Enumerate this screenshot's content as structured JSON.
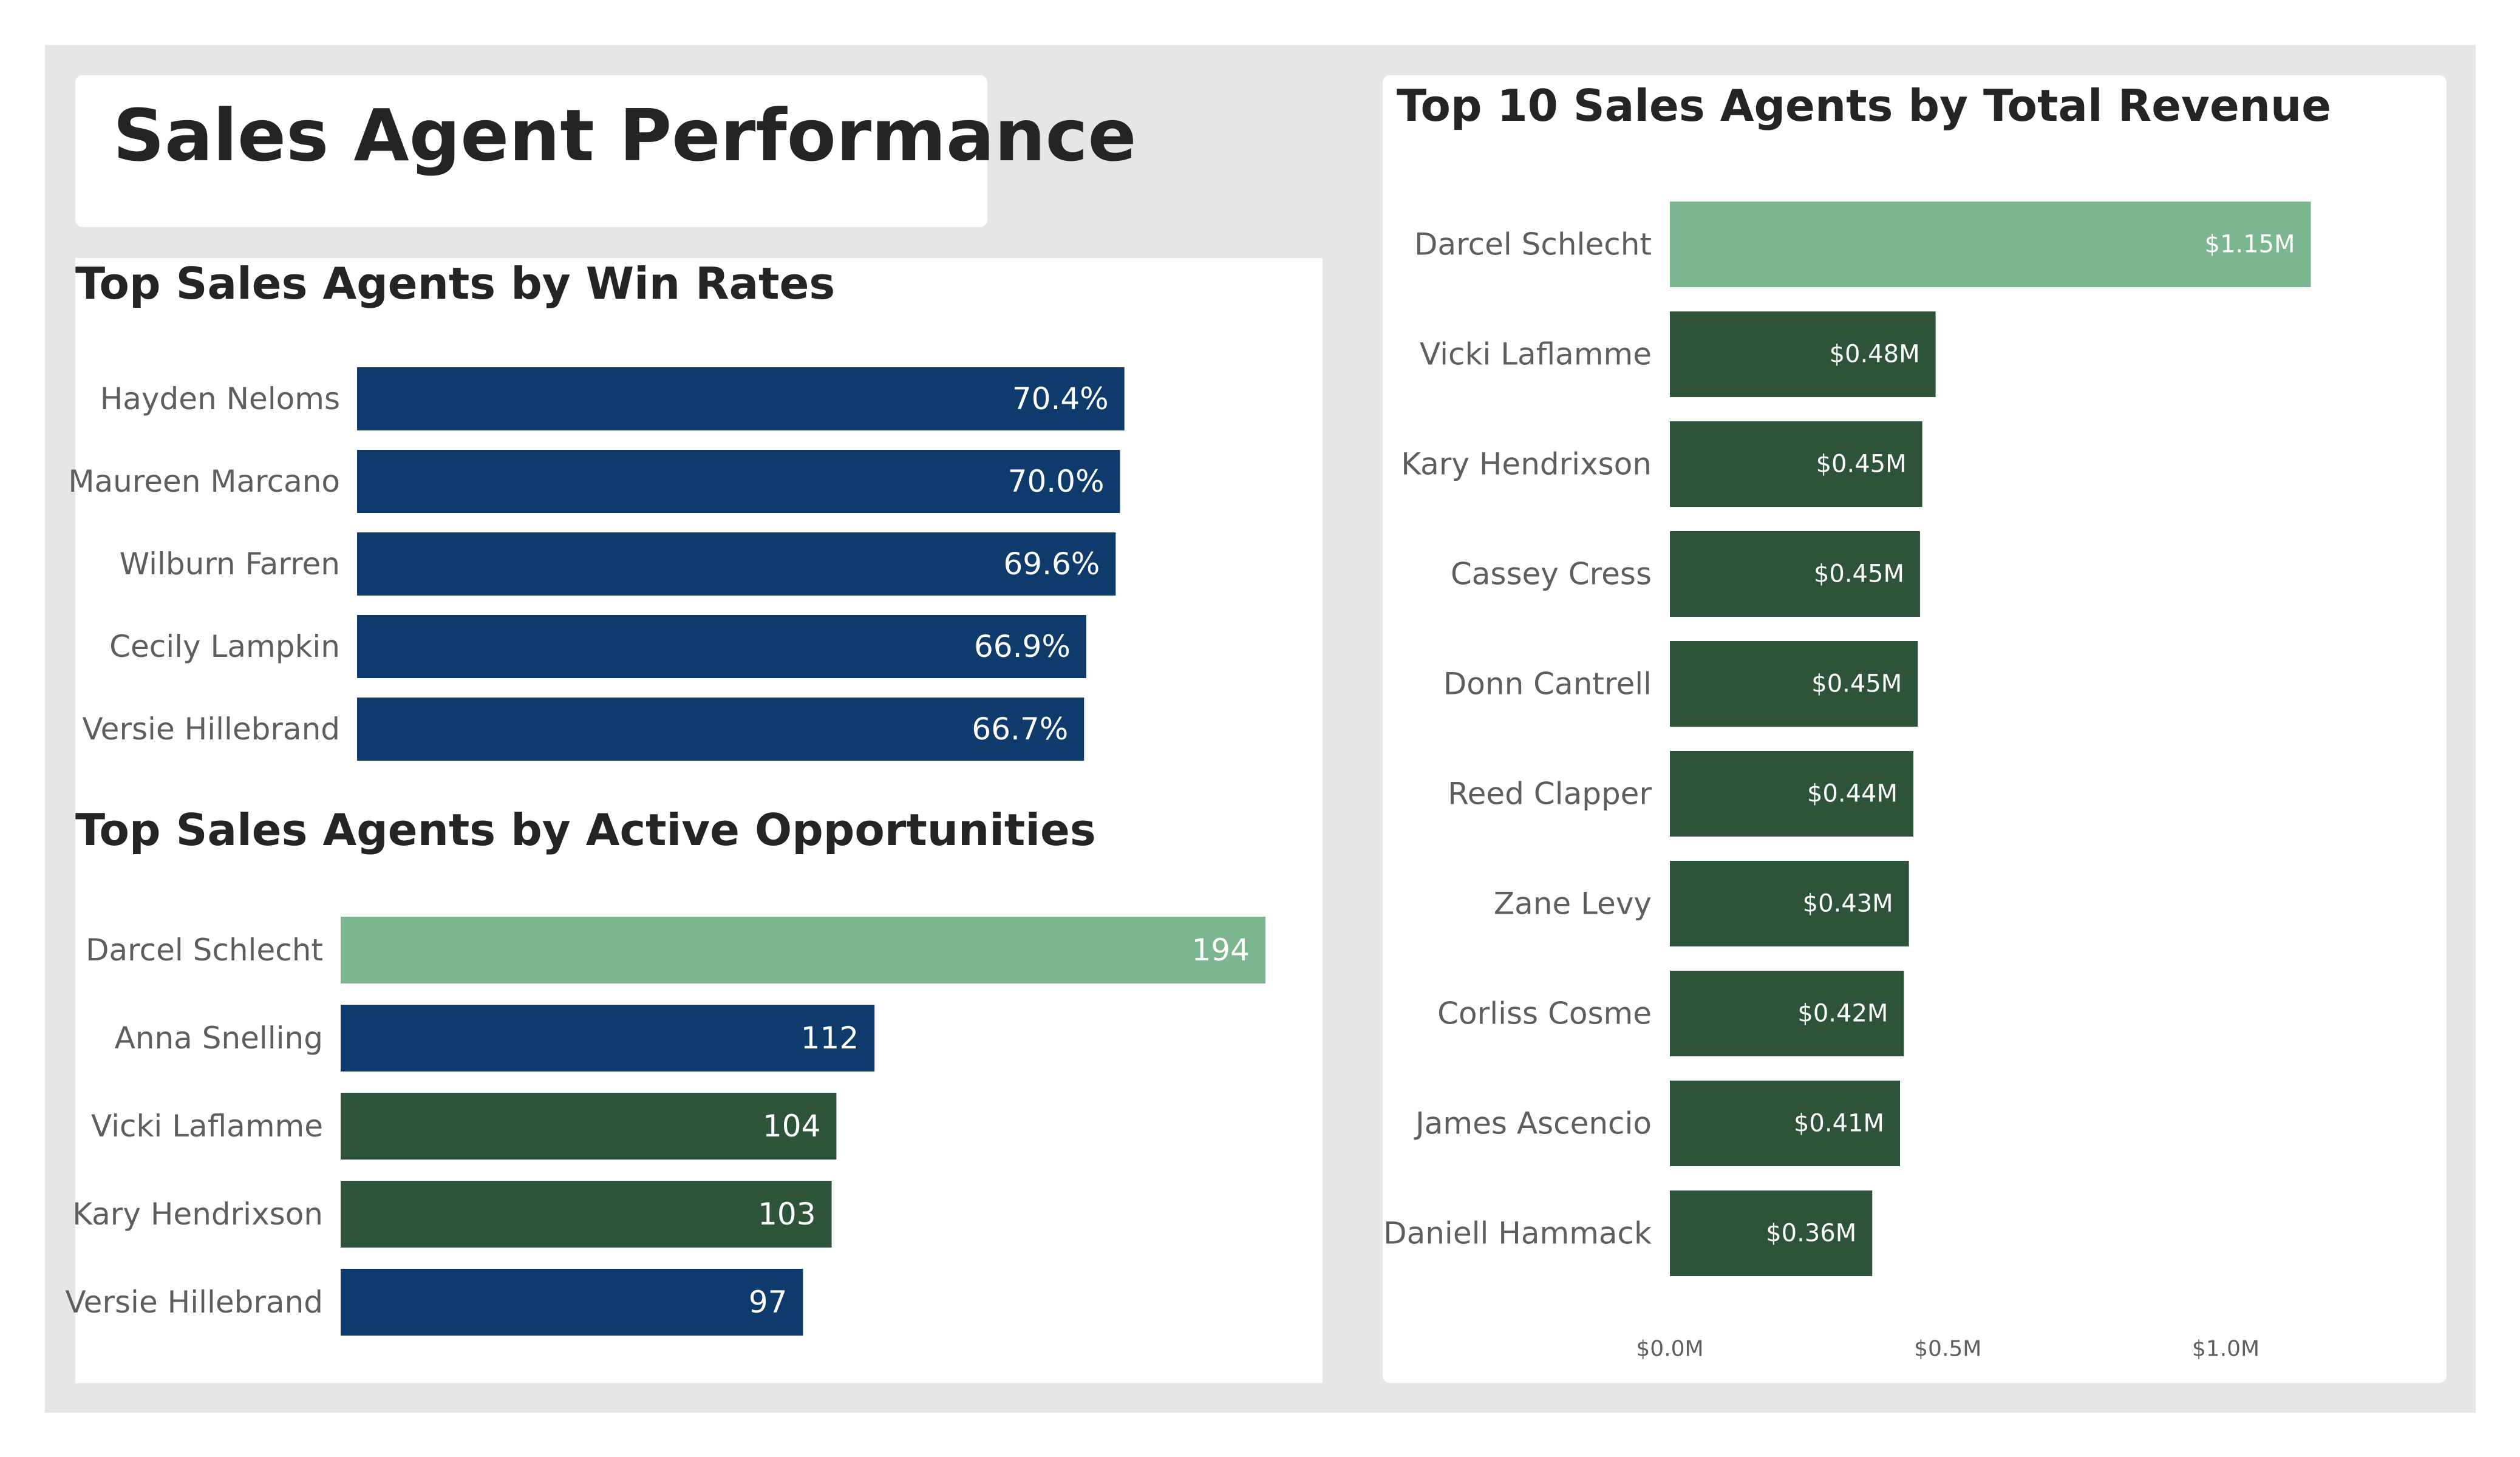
{
  "page": {
    "title": "Sales Agent Performance"
  },
  "colors": {
    "navy": "#0f3a6c",
    "dark_green": "#2d5339",
    "highlight_green": "#7bb68f"
  },
  "chart_data": [
    {
      "id": "win-rates",
      "type": "bar",
      "orientation": "horizontal",
      "title": "Top Sales Agents by Win Rates",
      "categories": [
        "Hayden Neloms",
        "Maureen Marcano",
        "Wilburn Farren",
        "Cecily Lampkin",
        "Versie Hillebrand"
      ],
      "values": [
        70.4,
        70.0,
        69.6,
        66.9,
        66.7
      ],
      "value_labels": [
        "70.4%",
        "70.0%",
        "69.6%",
        "66.9%",
        "66.7%"
      ],
      "bar_colors": [
        "#0f3a6c",
        "#0f3a6c",
        "#0f3a6c",
        "#0f3a6c",
        "#0f3a6c"
      ],
      "xlim": [
        0,
        80
      ]
    },
    {
      "id": "active-opps",
      "type": "bar",
      "orientation": "horizontal",
      "title": "Top Sales Agents by Active Opportunities",
      "categories": [
        "Darcel Schlecht",
        "Anna Snelling",
        "Vicki Laflamme",
        "Kary Hendrixson",
        "Versie Hillebrand"
      ],
      "values": [
        194,
        112,
        104,
        103,
        97
      ],
      "value_labels": [
        "194",
        "112",
        "104",
        "103",
        "97"
      ],
      "bar_colors": [
        "#7bb68f",
        "#0f3a6c",
        "#2d5339",
        "#2d5339",
        "#0f3a6c"
      ],
      "xlim": [
        0,
        194
      ]
    },
    {
      "id": "revenue",
      "type": "bar",
      "orientation": "horizontal",
      "title": "Top 10 Sales Agents by Total Revenue",
      "categories": [
        "Darcel Schlecht",
        "Vicki Laflamme",
        "Kary Hendrixson",
        "Cassey Cress",
        "Donn Cantrell",
        "Reed Clapper",
        "Zane Levy",
        "Corliss Cosme",
        "James Ascencio",
        "Daniell Hammack"
      ],
      "values": [
        1.153,
        0.478,
        0.454,
        0.45,
        0.446,
        0.438,
        0.43,
        0.421,
        0.414,
        0.364
      ],
      "value_labels": [
        "$1.15M",
        "$0.48M",
        "$0.45M",
        "$0.45M",
        "$0.45M",
        "$0.44M",
        "$0.43M",
        "$0.42M",
        "$0.41M",
        "$0.36M"
      ],
      "bar_colors": [
        "#7bb68f",
        "#2d5339",
        "#2d5339",
        "#2d5339",
        "#2d5339",
        "#2d5339",
        "#2d5339",
        "#2d5339",
        "#2d5339",
        "#2d5339"
      ],
      "xlim": [
        0,
        1.0
      ],
      "x_ticks": [
        0,
        0.5,
        1.0
      ],
      "x_tick_labels": [
        "$0.0M",
        "$0.5M",
        "$1.0M"
      ]
    }
  ]
}
